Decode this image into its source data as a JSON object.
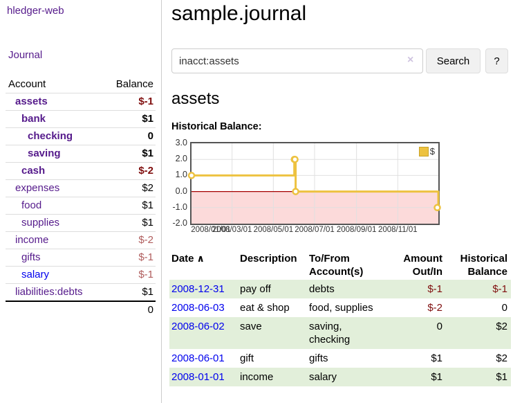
{
  "sidebar": {
    "app_title": "hledger-web",
    "nav_journal": "Journal",
    "table": {
      "account_header": "Account",
      "balance_header": "Balance",
      "rows": [
        {
          "name": "assets",
          "indent": 1,
          "bold": true,
          "balance": "$-1",
          "balance_style": "neg-dark",
          "link_color": "purple"
        },
        {
          "name": "bank",
          "indent": 2,
          "bold": true,
          "balance": "$1",
          "balance_style": "normal",
          "link_color": "purple"
        },
        {
          "name": "checking",
          "indent": 3,
          "bold": true,
          "balance": "0",
          "balance_style": "normal",
          "link_color": "purple"
        },
        {
          "name": "saving",
          "indent": 3,
          "bold": true,
          "balance": "$1",
          "balance_style": "normal",
          "link_color": "purple"
        },
        {
          "name": "cash",
          "indent": 2,
          "bold": true,
          "balance": "$-2",
          "balance_style": "neg-dark",
          "link_color": "purple"
        },
        {
          "name": "expenses",
          "indent": 1,
          "bold": false,
          "balance": "$2",
          "balance_style": "normal",
          "link_color": "purple"
        },
        {
          "name": "food",
          "indent": 2,
          "bold": false,
          "balance": "$1",
          "balance_style": "normal",
          "link_color": "purple"
        },
        {
          "name": "supplies",
          "indent": 2,
          "bold": false,
          "balance": "$1",
          "balance_style": "normal",
          "link_color": "purple"
        },
        {
          "name": "income",
          "indent": 1,
          "bold": false,
          "balance": "$-2",
          "balance_style": "neg-light",
          "link_color": "purple"
        },
        {
          "name": "gifts",
          "indent": 2,
          "bold": false,
          "balance": "$-1",
          "balance_style": "neg-light",
          "link_color": "purple"
        },
        {
          "name": "salary",
          "indent": 2,
          "bold": false,
          "balance": "$-1",
          "balance_style": "neg-light",
          "link_color": "blue"
        },
        {
          "name": "liabilities:debts",
          "indent": 1,
          "bold": false,
          "balance": "$1",
          "balance_style": "normal",
          "link_color": "purple"
        }
      ],
      "total": "0"
    }
  },
  "main": {
    "title": "sample.journal",
    "search": {
      "value": "inacct:assets",
      "clear_icon": "×",
      "button_label": "Search",
      "help_label": "?"
    },
    "account_heading": "assets",
    "chart_label": "Historical Balance:"
  },
  "chart_data": {
    "type": "line",
    "title": "Historical Balance:",
    "legend": {
      "label": "$",
      "position": "top-right"
    },
    "x_start": "2008-01-01",
    "x_end": "2008-12-31",
    "ylim": [
      -2,
      3
    ],
    "yticks": [
      "3.0",
      "2.0",
      "1.0",
      "0.0",
      "-1.0",
      "-2.0"
    ],
    "xtick_dates": [
      "2008-01-01",
      "2008-03-01",
      "2008-05-01",
      "2008-07-01",
      "2008-09-01",
      "2008-11-01"
    ],
    "xtick_labels": [
      "2008/01/01",
      "2008/03/01",
      "2008/05/01",
      "2008/07/01",
      "2008/09/01",
      "2008/11/01"
    ],
    "grid": true,
    "series": [
      {
        "name": "$",
        "color": "#edc240",
        "step": true,
        "points": [
          {
            "x": "2008-01-01",
            "y": 1
          },
          {
            "x": "2008-06-01",
            "y": 2
          },
          {
            "x": "2008-06-02",
            "y": 2
          },
          {
            "x": "2008-06-03",
            "y": 0
          },
          {
            "x": "2008-12-31",
            "y": -1
          }
        ]
      }
    ],
    "negative_fill": "#fcdada",
    "zero_line_color": "#a40000",
    "grid_color": "#e0e0e0",
    "border_color": "#545454"
  },
  "transactions": {
    "headers": {
      "date": "Date",
      "sort_arrow": "∧",
      "description": "Description",
      "tofrom1": "To/From",
      "tofrom2": "Account(s)",
      "amount1": "Amount",
      "amount2": "Out/In",
      "balance1": "Historical",
      "balance2": "Balance"
    },
    "rows": [
      {
        "date": "2008-12-31",
        "description": "pay off",
        "accounts": "debts",
        "amount": "$-1",
        "amount_neg": true,
        "balance": "$-1",
        "balance_neg": true,
        "shaded": true
      },
      {
        "date": "2008-06-03",
        "description": "eat & shop",
        "accounts": "food, supplies",
        "amount": "$-2",
        "amount_neg": true,
        "balance": "0",
        "balance_neg": false,
        "shaded": false
      },
      {
        "date": "2008-06-02",
        "description": "save",
        "accounts": "saving, checking",
        "amount": "0",
        "amount_neg": false,
        "balance": "$2",
        "balance_neg": false,
        "shaded": true
      },
      {
        "date": "2008-06-01",
        "description": "gift",
        "accounts": "gifts",
        "amount": "$1",
        "amount_neg": false,
        "balance": "$2",
        "balance_neg": false,
        "shaded": false
      },
      {
        "date": "2008-01-01",
        "description": "income",
        "accounts": "salary",
        "amount": "$1",
        "amount_neg": false,
        "balance": "$1",
        "balance_neg": false,
        "shaded": true
      }
    ]
  }
}
